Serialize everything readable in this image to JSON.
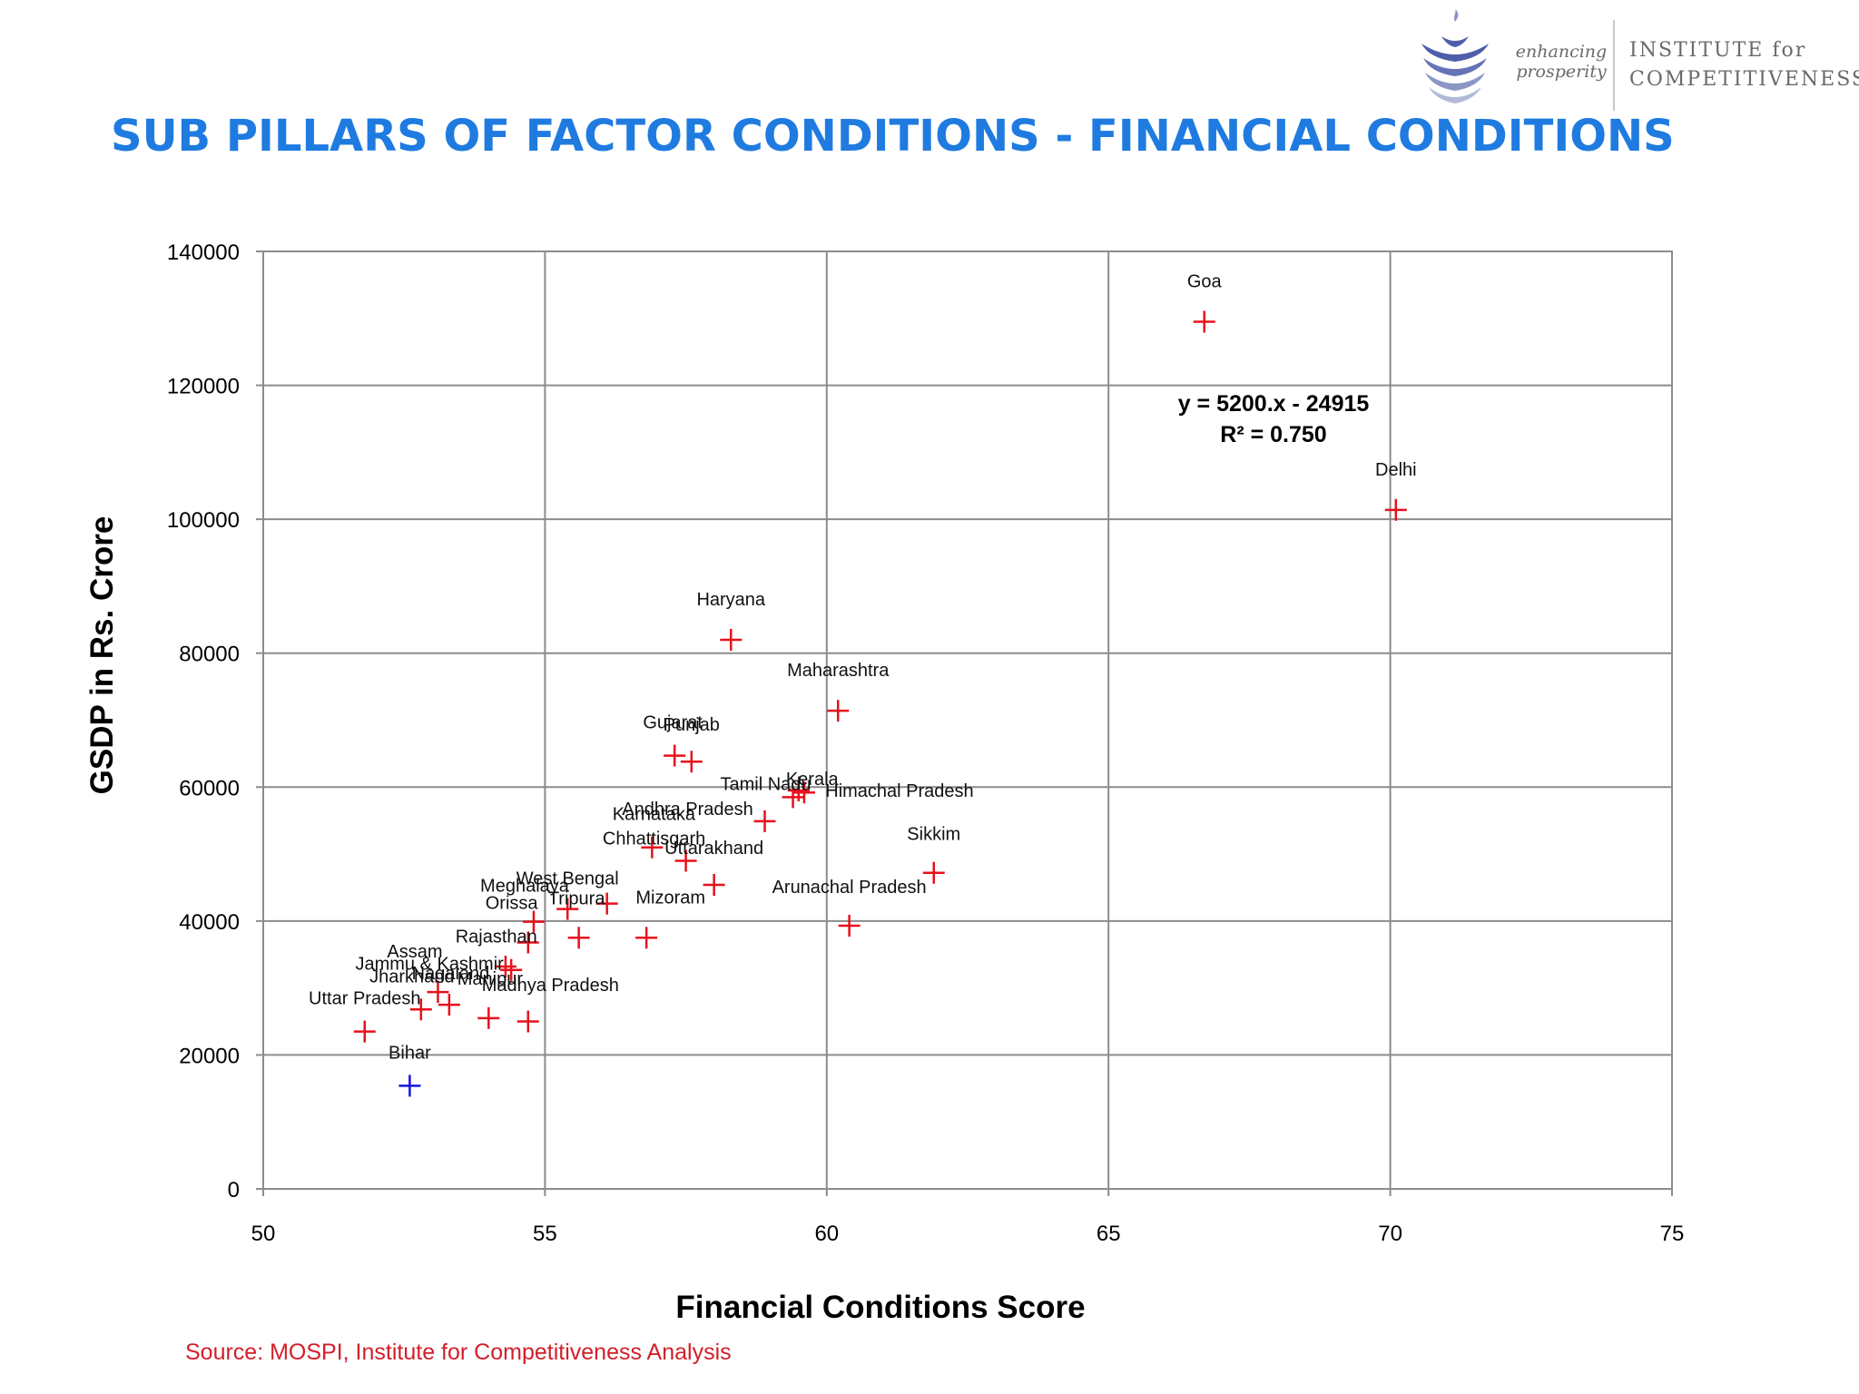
{
  "slide": {
    "title": "SUB PILLARS OF FACTOR CONDITIONS - FINANCIAL CONDITIONS",
    "source": "Source: MOSPI, Institute for Competitiveness Analysis"
  },
  "logo": {
    "tagline_line1": "enhancing",
    "tagline_line2": "prosperity",
    "org_line1": "INSTITUTE for",
    "org_line2": "COMPETITIVENESS",
    "icon": "layered-leaf-logo-icon"
  },
  "colors": {
    "title": "#1f7be0",
    "point": "#e8101c",
    "highlight_point": "#1414d8",
    "source": "#d21f2a",
    "grid": "#8c8c8c",
    "trendline": "#000000"
  },
  "chart_data": {
    "type": "scatter",
    "xlabel": "Financial Conditions Score",
    "ylabel": "GSDP in Rs. Crore",
    "xlim": [
      50,
      75
    ],
    "ylim": [
      0,
      140000
    ],
    "x_ticks": [
      50,
      55,
      60,
      65,
      70,
      75
    ],
    "y_ticks": [
      0,
      20000,
      40000,
      60000,
      80000,
      100000,
      120000,
      140000
    ],
    "grid": true,
    "trendline": {
      "equation": "y = 5200.x - 24915",
      "r_squared": "R² = 0.750",
      "slope": 5200,
      "intercept": -24915,
      "x_range": [
        51.8,
        70.1
      ]
    },
    "points": [
      {
        "label": "Goa",
        "x": 66.7,
        "y": 129500,
        "highlight": false
      },
      {
        "label": "Delhi",
        "x": 70.1,
        "y": 101400,
        "highlight": false
      },
      {
        "label": "Haryana",
        "x": 58.3,
        "y": 82000,
        "highlight": false
      },
      {
        "label": "Maharashtra",
        "x": 60.2,
        "y": 71400,
        "highlight": false
      },
      {
        "label": "Gujarat",
        "x": 57.3,
        "y": 64700,
        "highlight": false
      },
      {
        "label": "Punjab",
        "x": 57.6,
        "y": 63800,
        "highlight": false
      },
      {
        "label": "Himachal Pradesh",
        "x": 59.6,
        "y": 59200,
        "highlight": false
      },
      {
        "label": "Kerala",
        "x": 59.5,
        "y": 59500,
        "highlight": false
      },
      {
        "label": "Tamil Nadu",
        "x": 59.4,
        "y": 58500,
        "highlight": false
      },
      {
        "label": "Karnataka",
        "x": 56.9,
        "y": 51000,
        "highlight": false
      },
      {
        "label": "Andhra Pradesh",
        "x": 58.9,
        "y": 54900,
        "highlight": false
      },
      {
        "label": "Uttarakhand",
        "x": 58.0,
        "y": 45400,
        "highlight": false
      },
      {
        "label": "Sikkim",
        "x": 61.9,
        "y": 47200,
        "highlight": false
      },
      {
        "label": "Arunachal Pradesh",
        "x": 60.4,
        "y": 39300,
        "highlight": false
      },
      {
        "label": "Chhattisgarh",
        "x": 57.5,
        "y": 49000,
        "highlight": false
      },
      {
        "label": "West Bengal",
        "x": 55.4,
        "y": 41800,
        "highlight": false
      },
      {
        "label": "Mizoram",
        "x": 56.1,
        "y": 42600,
        "highlight": false
      },
      {
        "label": "Tripura",
        "x": 56.8,
        "y": 37500,
        "highlight": false
      },
      {
        "label": "Meghalaya",
        "x": 54.8,
        "y": 39900,
        "highlight": false
      },
      {
        "label": "Orissa",
        "x": 55.6,
        "y": 37500,
        "highlight": false
      },
      {
        "label": "Rajasthan",
        "x": 54.7,
        "y": 36800,
        "highlight": false
      },
      {
        "label": "Jammu & Kashmir",
        "x": 54.4,
        "y": 32700,
        "highlight": false
      },
      {
        "label": "Assam",
        "x": 54.3,
        "y": 33200,
        "highlight": false
      },
      {
        "label": "Nagaland",
        "x": 53.1,
        "y": 29400,
        "highlight": false
      },
      {
        "label": "Jharkhand",
        "x": 52.8,
        "y": 26800,
        "highlight": false
      },
      {
        "label": "Manipur",
        "x": 53.3,
        "y": 27500,
        "highlight": false
      },
      {
        "label": "Madhya Pradesh",
        "x": 54.0,
        "y": 25500,
        "highlight": false
      },
      {
        "label": "Uttar Pradesh",
        "x": 51.8,
        "y": 23500,
        "highlight": false
      },
      {
        "label": "Bihar",
        "x": 52.6,
        "y": 15400,
        "highlight": true
      }
    ],
    "extra_markers": [
      {
        "x": 54.7,
        "y": 25000
      }
    ]
  }
}
